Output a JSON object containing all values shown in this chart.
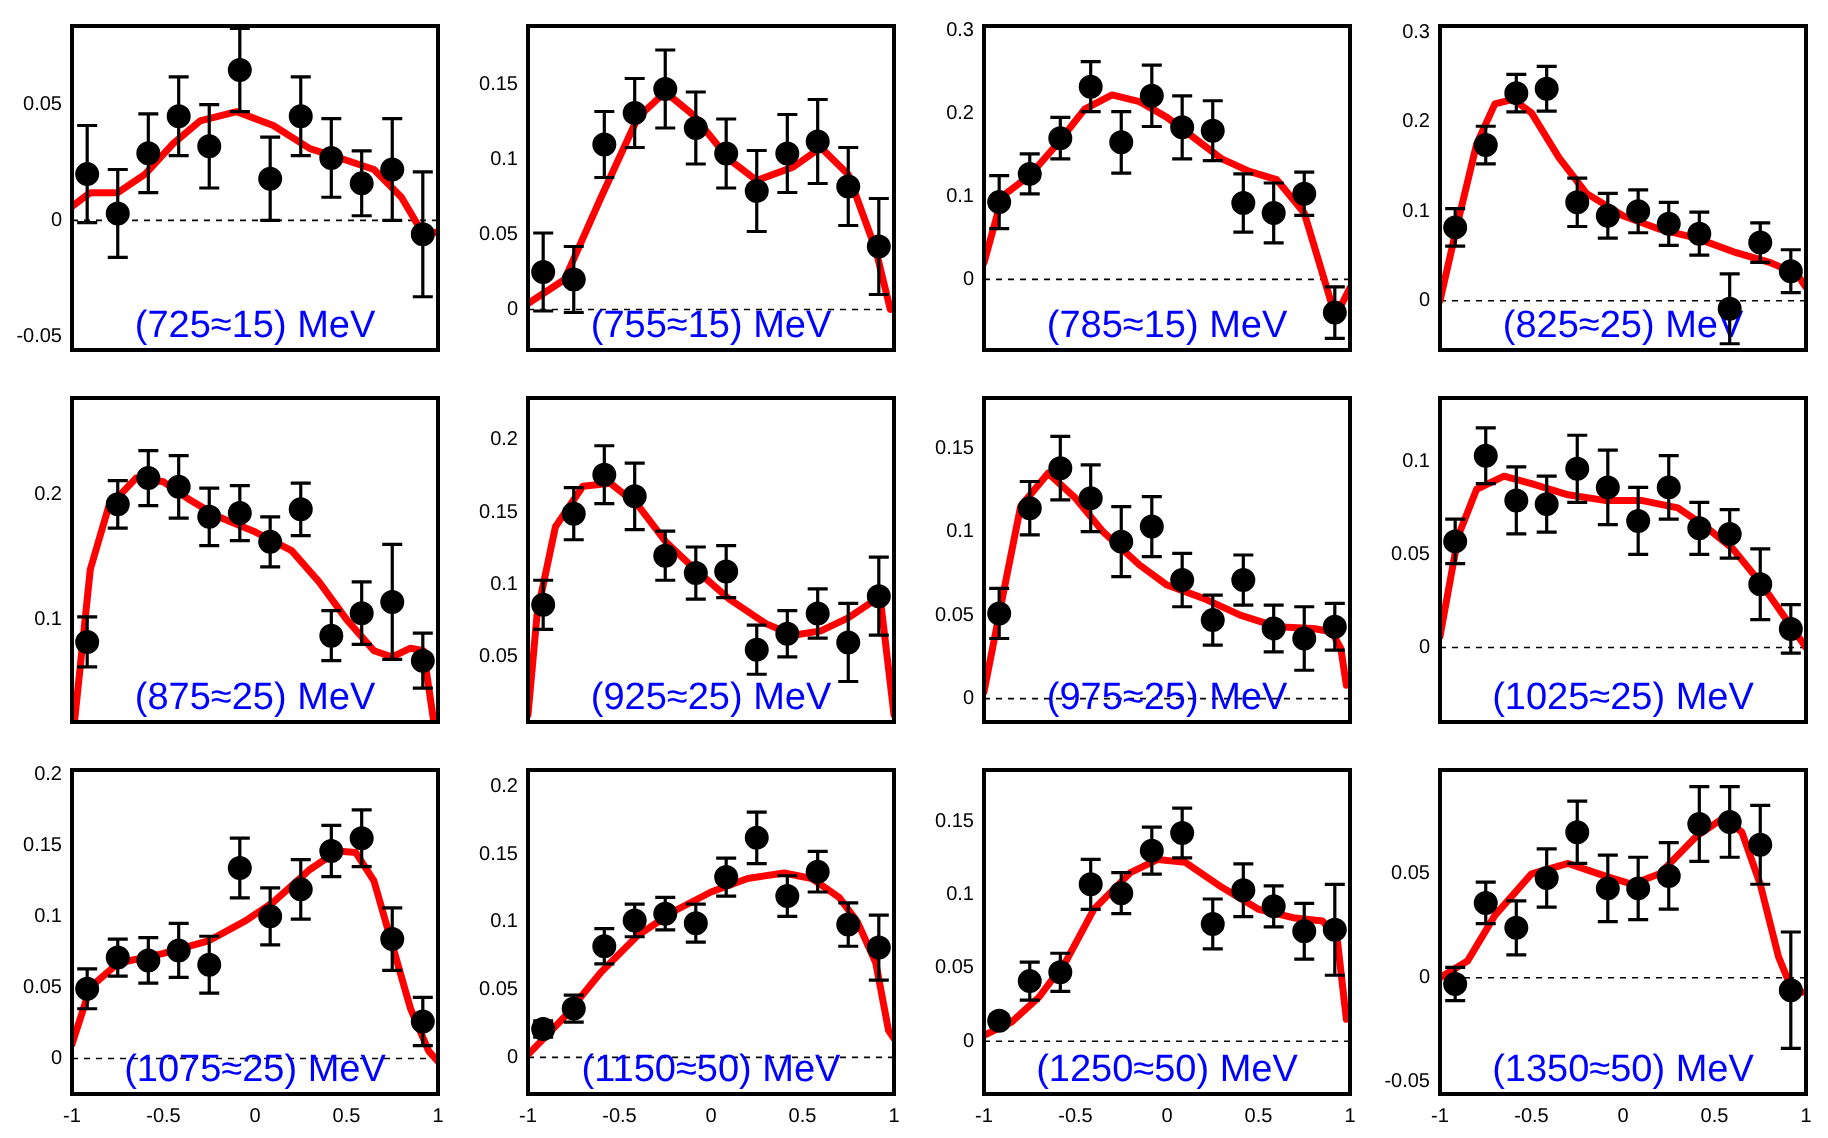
{
  "chart_data": [
    {
      "type": "scatter",
      "annotations": [
        "(725≈15) MeV"
      ],
      "xlim": [
        -1,
        1
      ],
      "xticks": [
        -1,
        -0.5,
        0,
        0.5,
        1
      ],
      "ylim": [
        -0.056,
        0.084
      ],
      "yticks": [
        -0.05,
        0,
        0.05
      ],
      "tick_labels": "y",
      "ref_lines": [
        {
          "axis": "y",
          "value": 0,
          "line_style": "dashed"
        }
      ],
      "series": [
        {
          "color": "#000000",
          "marker": "circle",
          "x": [
            -0.917,
            -0.75,
            -0.583,
            -0.417,
            -0.25,
            -0.083,
            0.083,
            0.25,
            0.417,
            0.583,
            0.75,
            0.917
          ],
          "values": [
            0.02,
            0.003,
            0.029,
            0.045,
            0.032,
            0.065,
            0.018,
            0.045,
            0.027,
            0.016,
            0.022,
            -0.006
          ],
          "errors": [
            0.021,
            0.019,
            0.017,
            0.017,
            0.018,
            0.018,
            0.018,
            0.017,
            0.017,
            0.014,
            0.022,
            0.027
          ]
        },
        {
          "type": "line",
          "color": "#ff0000",
          "x": [
            -1,
            -0.9,
            -0.75,
            -0.6,
            -0.45,
            -0.3,
            -0.1,
            0.1,
            0.3,
            0.5,
            0.65,
            0.8,
            0.92,
            1
          ],
          "values": [
            0.006,
            0.012,
            0.012,
            0.02,
            0.033,
            0.043,
            0.047,
            0.041,
            0.031,
            0.026,
            0.022,
            0.01,
            -0.006,
            -0.005
          ]
        }
      ]
    },
    {
      "type": "scatter",
      "annotations": [
        "(755≈15) MeV"
      ],
      "xlim": [
        -1,
        1
      ],
      "xticks": [
        -1,
        -0.5,
        0,
        0.5,
        1
      ],
      "ylim": [
        -0.027,
        0.189
      ],
      "yticks": [
        0,
        0.05,
        0.1,
        0.15
      ],
      "tick_labels": "y",
      "ref_lines": [
        {
          "axis": "y",
          "value": 0,
          "line_style": "dashed"
        }
      ],
      "series": [
        {
          "color": "#000000",
          "marker": "circle",
          "x": [
            -0.917,
            -0.75,
            -0.583,
            -0.417,
            -0.25,
            -0.083,
            0.083,
            0.25,
            0.417,
            0.583,
            0.75,
            0.917
          ],
          "values": [
            0.025,
            0.02,
            0.11,
            0.131,
            0.147,
            0.121,
            0.104,
            0.079,
            0.104,
            0.112,
            0.082,
            0.042
          ],
          "errors": [
            0.026,
            0.022,
            0.022,
            0.023,
            0.026,
            0.024,
            0.023,
            0.027,
            0.026,
            0.028,
            0.026,
            0.032
          ]
        },
        {
          "type": "line",
          "color": "#ff0000",
          "x": [
            -1,
            -0.8,
            -0.6,
            -0.4,
            -0.25,
            -0.1,
            0.1,
            0.25,
            0.45,
            0.6,
            0.75,
            0.9,
            0.98
          ],
          "values": [
            0.004,
            0.02,
            0.075,
            0.128,
            0.145,
            0.13,
            0.1,
            0.086,
            0.095,
            0.108,
            0.09,
            0.04,
            0
          ]
        }
      ]
    },
    {
      "type": "scatter",
      "annotations": [
        "(785≈15) MeV"
      ],
      "xlim": [
        -1,
        1
      ],
      "xticks": [
        -1,
        -0.5,
        0,
        0.5,
        1
      ],
      "ylim": [
        -0.085,
        0.305
      ],
      "yticks": [
        0,
        0.1,
        0.2,
        0.3
      ],
      "tick_labels": "y",
      "ref_lines": [
        {
          "axis": "y",
          "value": 0,
          "line_style": "dashed"
        }
      ],
      "series": [
        {
          "color": "#000000",
          "marker": "circle",
          "x": [
            -0.917,
            -0.75,
            -0.583,
            -0.417,
            -0.25,
            -0.083,
            0.083,
            0.25,
            0.417,
            0.583,
            0.75,
            0.917
          ],
          "values": [
            0.093,
            0.127,
            0.17,
            0.232,
            0.165,
            0.221,
            0.183,
            0.179,
            0.092,
            0.08,
            0.103,
            -0.04
          ],
          "errors": [
            0.032,
            0.024,
            0.025,
            0.03,
            0.037,
            0.037,
            0.038,
            0.036,
            0.035,
            0.036,
            0.026,
            0.031
          ]
        },
        {
          "type": "line",
          "color": "#ff0000",
          "x": [
            -1,
            -0.9,
            -0.75,
            -0.6,
            -0.45,
            -0.3,
            -0.15,
            0,
            0.15,
            0.3,
            0.45,
            0.6,
            0.75,
            0.9,
            0.95,
            1
          ],
          "values": [
            0.02,
            0.1,
            0.125,
            0.163,
            0.205,
            0.222,
            0.214,
            0.195,
            0.17,
            0.145,
            0.13,
            0.12,
            0.08,
            -0.03,
            -0.032,
            -0.01
          ]
        }
      ]
    },
    {
      "type": "scatter",
      "annotations": [
        "(825≈25) MeV"
      ],
      "xlim": [
        -1,
        1
      ],
      "xticks": [
        -1,
        -0.5,
        0,
        0.5,
        1
      ],
      "ylim": [
        -0.055,
        0.307
      ],
      "yticks": [
        0,
        0.1,
        0.2,
        0.3
      ],
      "tick_labels": "y",
      "ref_lines": [
        {
          "axis": "y",
          "value": 0,
          "line_style": "dashed"
        }
      ],
      "series": [
        {
          "color": "#000000",
          "marker": "circle",
          "x": [
            -0.917,
            -0.75,
            -0.583,
            -0.417,
            -0.25,
            -0.083,
            0.083,
            0.25,
            0.417,
            0.583,
            0.75,
            0.917
          ],
          "values": [
            0.082,
            0.174,
            0.232,
            0.237,
            0.11,
            0.095,
            0.1,
            0.086,
            0.075,
            -0.009,
            0.065,
            0.033
          ],
          "errors": [
            0.021,
            0.021,
            0.021,
            0.025,
            0.027,
            0.025,
            0.024,
            0.024,
            0.024,
            0.039,
            0.022,
            0.024
          ]
        },
        {
          "type": "line",
          "color": "#ff0000",
          "x": [
            -1,
            -0.9,
            -0.8,
            -0.7,
            -0.6,
            -0.5,
            -0.35,
            -0.2,
            0,
            0.2,
            0.4,
            0.6,
            0.8,
            0.95,
            1
          ],
          "values": [
            0,
            0.09,
            0.175,
            0.22,
            0.225,
            0.21,
            0.16,
            0.12,
            0.095,
            0.08,
            0.07,
            0.055,
            0.043,
            0.03,
            0.015
          ]
        }
      ]
    },
    {
      "type": "scatter",
      "annotations": [
        "(875≈25) MeV"
      ],
      "xlim": [
        -1,
        1
      ],
      "xticks": [
        -1,
        -0.5,
        0,
        0.5,
        1
      ],
      "ylim": [
        0.018,
        0.277
      ],
      "yticks": [
        0.1,
        0.2
      ],
      "tick_labels": "y",
      "series": [
        {
          "color": "#000000",
          "marker": "circle",
          "x": [
            -0.917,
            -0.75,
            -0.583,
            -0.417,
            -0.25,
            -0.083,
            0.083,
            0.25,
            0.417,
            0.583,
            0.75,
            0.917
          ],
          "values": [
            0.082,
            0.192,
            0.213,
            0.206,
            0.182,
            0.185,
            0.162,
            0.188,
            0.087,
            0.105,
            0.114,
            0.067
          ],
          "errors": [
            0.02,
            0.019,
            0.022,
            0.025,
            0.023,
            0.022,
            0.02,
            0.021,
            0.02,
            0.025,
            0.046,
            0.022
          ]
        },
        {
          "type": "line",
          "color": "#ff0000",
          "x": [
            -0.985,
            -0.9,
            -0.8,
            -0.65,
            -0.5,
            -0.35,
            -0.2,
            0,
            0.2,
            0.35,
            0.5,
            0.65,
            0.75,
            0.85,
            0.92,
            0.975
          ],
          "values": [
            0.02,
            0.14,
            0.19,
            0.213,
            0.21,
            0.195,
            0.182,
            0.17,
            0.155,
            0.13,
            0.1,
            0.075,
            0.07,
            0.077,
            0.075,
            0.02
          ]
        }
      ]
    },
    {
      "type": "scatter",
      "annotations": [
        "(925≈25) MeV"
      ],
      "xlim": [
        -1,
        1
      ],
      "xticks": [
        -1,
        -0.5,
        0,
        0.5,
        1
      ],
      "ylim": [
        0.005,
        0.229
      ],
      "yticks": [
        0.05,
        0.1,
        0.15,
        0.2
      ],
      "tick_labels": "y",
      "series": [
        {
          "color": "#000000",
          "marker": "circle",
          "x": [
            -0.917,
            -0.75,
            -0.583,
            -0.417,
            -0.25,
            -0.083,
            0.083,
            0.25,
            0.417,
            0.583,
            0.75,
            0.917
          ],
          "values": [
            0.086,
            0.149,
            0.176,
            0.161,
            0.12,
            0.108,
            0.109,
            0.055,
            0.066,
            0.08,
            0.06,
            0.092
          ],
          "errors": [
            0.017,
            0.018,
            0.02,
            0.023,
            0.017,
            0.018,
            0.018,
            0.017,
            0.016,
            0.017,
            0.027,
            0.027
          ]
        },
        {
          "type": "line",
          "color": "#ff0000",
          "x": [
            -1,
            -0.95,
            -0.85,
            -0.7,
            -0.55,
            -0.4,
            -0.25,
            -0.1,
            0.1,
            0.3,
            0.45,
            0.6,
            0.75,
            0.88,
            0.93,
            1
          ],
          "values": [
            0.01,
            0.08,
            0.14,
            0.168,
            0.17,
            0.155,
            0.13,
            0.112,
            0.09,
            0.073,
            0.065,
            0.068,
            0.077,
            0.088,
            0.085,
            0.01
          ]
        }
      ]
    },
    {
      "type": "scatter",
      "annotations": [
        "(975≈25) MeV"
      ],
      "xlim": [
        -1,
        1
      ],
      "xticks": [
        -1,
        -0.5,
        0,
        0.5,
        1
      ],
      "ylim": [
        -0.014,
        0.18
      ],
      "yticks": [
        0,
        0.05,
        0.1,
        0.15
      ],
      "tick_labels": "y",
      "ref_lines": [
        {
          "axis": "y",
          "value": 0,
          "line_style": "dashed"
        }
      ],
      "series": [
        {
          "color": "#000000",
          "marker": "circle",
          "x": [
            -0.917,
            -0.75,
            -0.583,
            -0.417,
            -0.25,
            -0.083,
            0.083,
            0.25,
            0.417,
            0.583,
            0.75,
            0.917
          ],
          "values": [
            0.051,
            0.114,
            0.138,
            0.12,
            0.094,
            0.103,
            0.071,
            0.047,
            0.071,
            0.042,
            0.036,
            0.043
          ],
          "errors": [
            0.015,
            0.016,
            0.019,
            0.02,
            0.021,
            0.018,
            0.016,
            0.015,
            0.015,
            0.014,
            0.019,
            0.014
          ]
        },
        {
          "type": "line",
          "color": "#ff0000",
          "x": [
            -1,
            -0.9,
            -0.8,
            -0.65,
            -0.5,
            -0.35,
            -0.15,
            0,
            0.2,
            0.4,
            0.6,
            0.8,
            0.9,
            0.95,
            0.98
          ],
          "values": [
            0.004,
            0.06,
            0.115,
            0.135,
            0.12,
            0.1,
            0.08,
            0.068,
            0.06,
            0.05,
            0.043,
            0.042,
            0.04,
            0.03,
            0.008
          ]
        }
      ]
    },
    {
      "type": "scatter",
      "annotations": [
        "(1025≈25) MeV"
      ],
      "xlim": [
        -1,
        1
      ],
      "xticks": [
        -1,
        -0.5,
        0,
        0.5,
        1
      ],
      "ylim": [
        -0.04,
        0.134
      ],
      "yticks": [
        0,
        0.05,
        0.1
      ],
      "tick_labels": "y",
      "ref_lines": [
        {
          "axis": "y",
          "value": 0,
          "line_style": "dashed"
        }
      ],
      "series": [
        {
          "color": "#000000",
          "marker": "circle",
          "x": [
            -0.917,
            -0.75,
            -0.583,
            -0.417,
            -0.25,
            -0.083,
            0.083,
            0.25,
            0.417,
            0.583,
            0.75,
            0.917
          ],
          "values": [
            0.057,
            0.103,
            0.079,
            0.077,
            0.096,
            0.086,
            0.068,
            0.086,
            0.064,
            0.061,
            0.034,
            0.01
          ],
          "errors": [
            0.012,
            0.015,
            0.018,
            0.015,
            0.018,
            0.02,
            0.018,
            0.017,
            0.014,
            0.013,
            0.019,
            0.013
          ]
        },
        {
          "type": "line",
          "color": "#ff0000",
          "x": [
            -1,
            -0.9,
            -0.8,
            -0.65,
            -0.5,
            -0.3,
            -0.1,
            0.1,
            0.3,
            0.45,
            0.6,
            0.75,
            0.9,
            1
          ],
          "values": [
            0.006,
            0.06,
            0.085,
            0.092,
            0.088,
            0.082,
            0.079,
            0.079,
            0.075,
            0.065,
            0.053,
            0.035,
            0.014,
            0
          ]
        }
      ]
    },
    {
      "type": "scatter",
      "annotations": [
        "(1075≈25) MeV"
      ],
      "xlim": [
        -1,
        1
      ],
      "xticks": [
        -1,
        -0.5,
        0,
        0.5,
        1
      ],
      "ylim": [
        -0.025,
        0.203
      ],
      "yticks": [
        0,
        0.05,
        0.1,
        0.15,
        0.2
      ],
      "ref_lines": [
        {
          "axis": "y",
          "value": 0,
          "line_style": "dashed"
        }
      ],
      "series": [
        {
          "color": "#000000",
          "marker": "circle",
          "x": [
            -0.917,
            -0.75,
            -0.583,
            -0.417,
            -0.25,
            -0.083,
            0.083,
            0.25,
            0.417,
            0.583,
            0.75,
            0.917
          ],
          "values": [
            0.049,
            0.071,
            0.069,
            0.076,
            0.066,
            0.134,
            0.1,
            0.119,
            0.146,
            0.155,
            0.084,
            0.026
          ],
          "errors": [
            0.014,
            0.013,
            0.016,
            0.019,
            0.02,
            0.021,
            0.02,
            0.021,
            0.018,
            0.02,
            0.022,
            0.017
          ]
        },
        {
          "type": "line",
          "color": "#ff0000",
          "x": [
            -1,
            -0.9,
            -0.75,
            -0.5,
            -0.25,
            -0.05,
            0.1,
            0.3,
            0.45,
            0.55,
            0.65,
            0.75,
            0.85,
            0.95,
            1
          ],
          "values": [
            0.01,
            0.05,
            0.067,
            0.074,
            0.083,
            0.097,
            0.11,
            0.133,
            0.146,
            0.145,
            0.125,
            0.08,
            0.035,
            0.005,
            -0.002
          ]
        }
      ]
    },
    {
      "type": "scatter",
      "annotations": [
        "(1150≈50) MeV"
      ],
      "xlim": [
        -1,
        1
      ],
      "xticks": [
        -1,
        -0.5,
        0,
        0.5,
        1
      ],
      "ylim": [
        -0.027,
        0.212
      ],
      "yticks": [
        0,
        0.05,
        0.1,
        0.15,
        0.2
      ],
      "ref_lines": [
        {
          "axis": "y",
          "value": 0,
          "line_style": "dashed"
        }
      ],
      "series": [
        {
          "color": "#000000",
          "marker": "circle",
          "x": [
            -0.917,
            -0.75,
            -0.583,
            -0.417,
            -0.25,
            -0.083,
            0.083,
            0.25,
            0.417,
            0.583,
            0.75,
            0.917
          ],
          "values": [
            0.021,
            0.036,
            0.082,
            0.101,
            0.106,
            0.099,
            0.133,
            0.162,
            0.119,
            0.137,
            0.098,
            0.081
          ],
          "errors": [
            0.006,
            0.01,
            0.013,
            0.012,
            0.012,
            0.014,
            0.014,
            0.019,
            0.015,
            0.015,
            0.016,
            0.024
          ]
        },
        {
          "type": "line",
          "color": "#ff0000",
          "x": [
            -1,
            -0.8,
            -0.6,
            -0.4,
            -0.2,
            0,
            0.2,
            0.4,
            0.55,
            0.7,
            0.8,
            0.9,
            0.97,
            1
          ],
          "values": [
            0.002,
            0.03,
            0.063,
            0.09,
            0.108,
            0.122,
            0.132,
            0.136,
            0.132,
            0.118,
            0.1,
            0.07,
            0.02,
            0.014
          ]
        }
      ]
    },
    {
      "type": "scatter",
      "annotations": [
        "(1250≈50) MeV"
      ],
      "xlim": [
        -1,
        1
      ],
      "xticks": [
        -1,
        -0.5,
        0,
        0.5,
        1
      ],
      "ylim": [
        -0.036,
        0.185
      ],
      "yticks": [
        0,
        0.05,
        0.1,
        0.15
      ],
      "ref_lines": [
        {
          "axis": "y",
          "value": 0,
          "line_style": "dashed"
        }
      ],
      "series": [
        {
          "color": "#000000",
          "marker": "circle",
          "x": [
            -0.917,
            -0.75,
            -0.583,
            -0.417,
            -0.25,
            -0.083,
            0.083,
            0.25,
            0.417,
            0.583,
            0.75,
            0.917
          ],
          "values": [
            0.014,
            0.041,
            0.047,
            0.107,
            0.101,
            0.13,
            0.142,
            0.08,
            0.103,
            0.092,
            0.075,
            0.076
          ],
          "errors": [
            0.004,
            0.013,
            0.013,
            0.017,
            0.014,
            0.016,
            0.017,
            0.017,
            0.018,
            0.014,
            0.019,
            0.031
          ]
        },
        {
          "type": "line",
          "color": "#ff0000",
          "x": [
            -1,
            -0.85,
            -0.7,
            -0.55,
            -0.4,
            -0.2,
            -0.05,
            0.1,
            0.3,
            0.5,
            0.7,
            0.85,
            0.93,
            0.98
          ],
          "values": [
            0.004,
            0.013,
            0.03,
            0.055,
            0.09,
            0.115,
            0.124,
            0.122,
            0.105,
            0.09,
            0.084,
            0.082,
            0.07,
            0.015
          ]
        }
      ]
    },
    {
      "type": "scatter",
      "annotations": [
        "(1350≈50) MeV"
      ],
      "xlim": [
        -1,
        1
      ],
      "xticks": [
        -1,
        -0.5,
        0,
        0.5,
        1
      ],
      "ylim": [
        -0.056,
        0.1
      ],
      "yticks": [
        -0.05,
        0,
        0.05
      ],
      "ref_lines": [
        {
          "axis": "y",
          "value": 0,
          "line_style": "dashed"
        }
      ],
      "series": [
        {
          "color": "#000000",
          "marker": "circle",
          "x": [
            -0.917,
            -0.75,
            -0.583,
            -0.417,
            -0.25,
            -0.083,
            0.083,
            0.25,
            0.417,
            0.583,
            0.75,
            0.917
          ],
          "values": [
            -0.003,
            0.036,
            0.024,
            0.048,
            0.07,
            0.043,
            0.043,
            0.049,
            0.074,
            0.075,
            0.064,
            -0.006
          ],
          "errors": [
            0.008,
            0.01,
            0.013,
            0.014,
            0.015,
            0.016,
            0.015,
            0.016,
            0.018,
            0.017,
            0.019,
            0.028
          ]
        },
        {
          "type": "line",
          "color": "#ff0000",
          "x": [
            -1,
            -0.85,
            -0.7,
            -0.5,
            -0.3,
            -0.1,
            0.05,
            0.2,
            0.4,
            0.55,
            0.65,
            0.75,
            0.85,
            0.92,
            0.98
          ],
          "values": [
            0,
            0.008,
            0.03,
            0.05,
            0.055,
            0.049,
            0.045,
            0.05,
            0.068,
            0.077,
            0.07,
            0.045,
            0.01,
            -0.005,
            -0.007
          ]
        }
      ]
    }
  ]
}
